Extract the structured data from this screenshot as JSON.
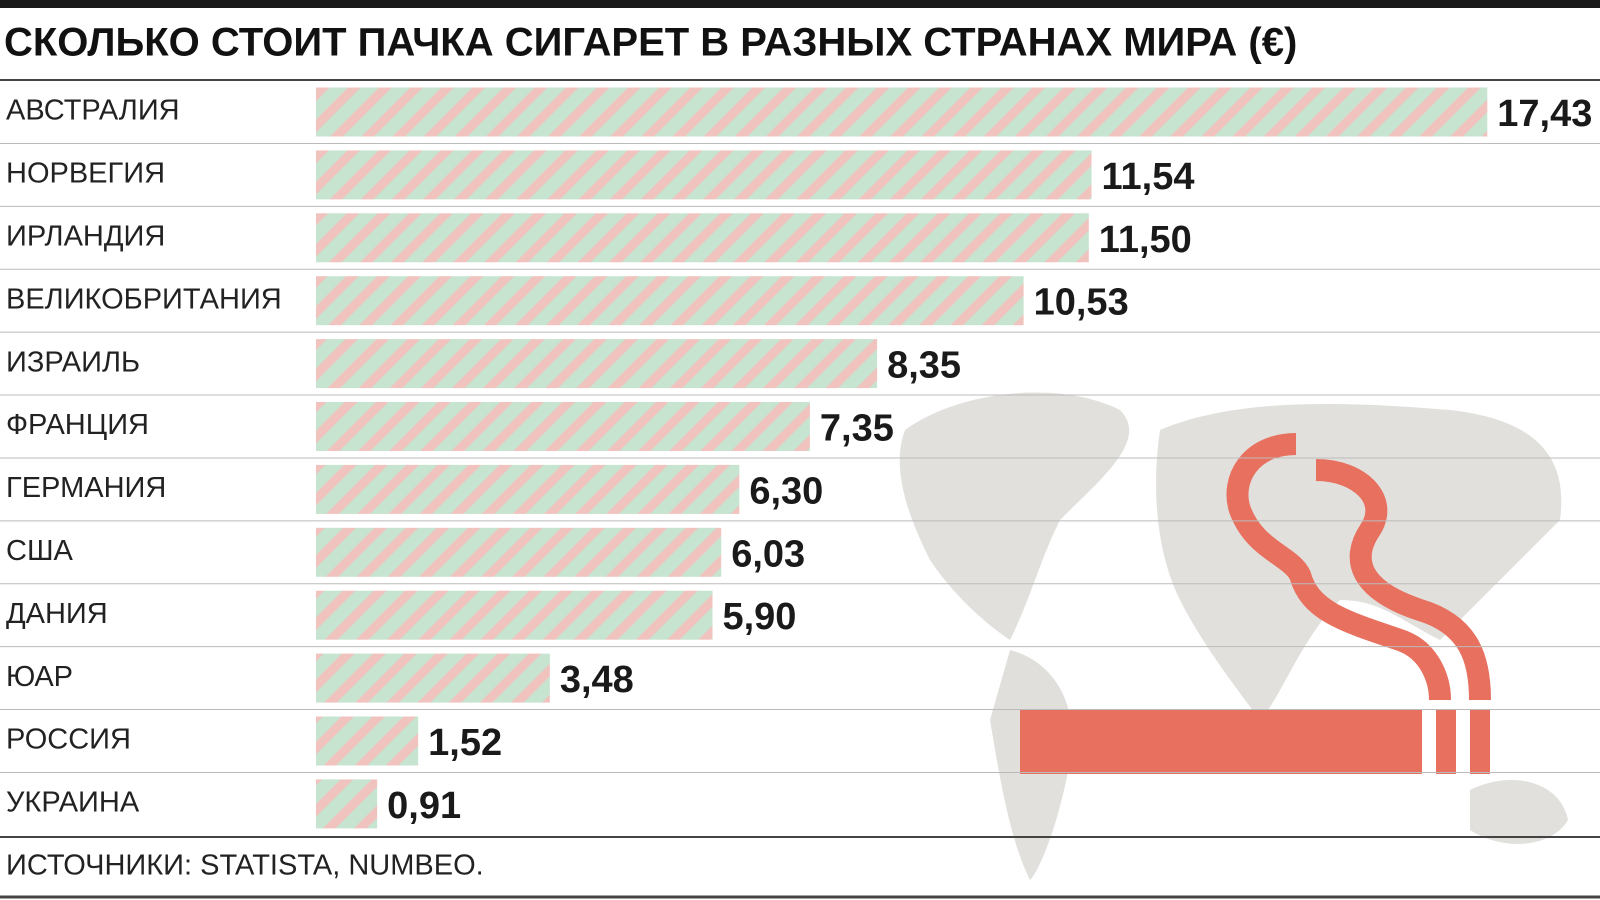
{
  "chart_data": {
    "type": "bar",
    "orientation": "horizontal",
    "title": "СКОЛЬКО СТОИТ ПАЧКА СИГАРЕТ В РАЗНЫХ СТРАНАХ МИРА (€)",
    "categories": [
      "АВСТРАЛИЯ",
      "НОРВЕГИЯ",
      "ИРЛАНДИЯ",
      "ВЕЛИКОБРИТАНИЯ",
      "ИЗРАИЛЬ",
      "ФРАНЦИЯ",
      "ГЕРМАНИЯ",
      "США",
      "ДАНИЯ",
      "ЮАР",
      "РОССИЯ",
      "УКРАИНА"
    ],
    "values": [
      17.43,
      11.54,
      11.5,
      10.53,
      8.35,
      7.35,
      6.3,
      6.03,
      5.9,
      3.48,
      1.52,
      0.91
    ],
    "value_labels": [
      "17,43",
      "11,54",
      "11,50",
      "10,53",
      "8,35",
      "7,35",
      "6,30",
      "6,03",
      "5,90",
      "3,48",
      "1,52",
      "0,91"
    ],
    "stripe_colors": [
      "#c6e4d0",
      "#f0c3be"
    ],
    "source": "ИСТОЧНИКИ: STATISTA, NUMBEO."
  }
}
